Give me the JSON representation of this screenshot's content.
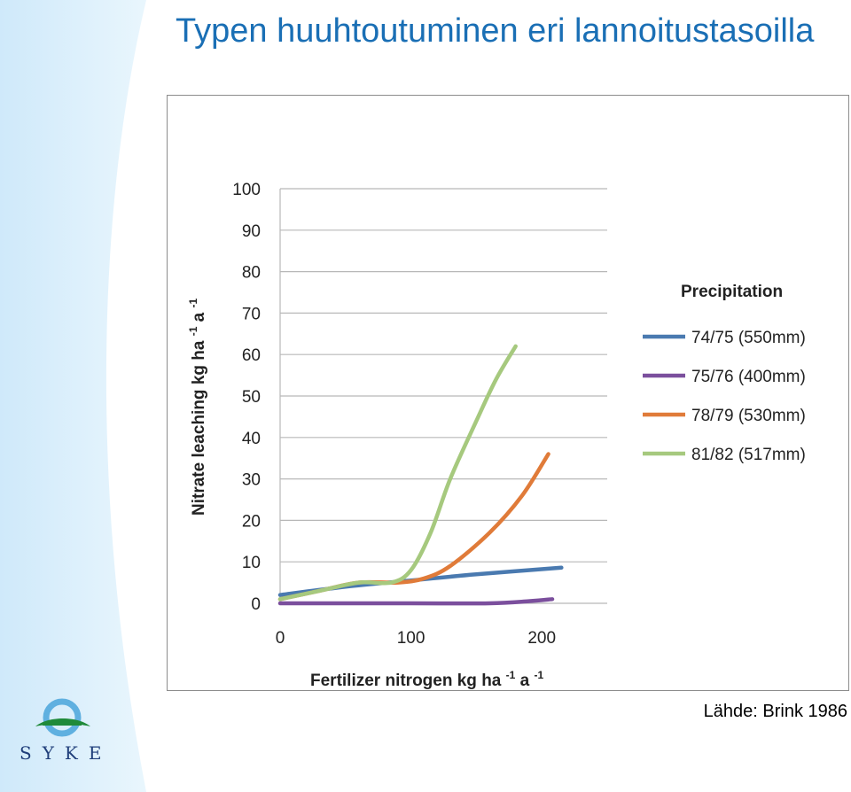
{
  "slide": {
    "title": "Typen huuhtoutuminen eri lannoitustasoilla",
    "source": "Lähde: Brink 1986",
    "logo_text": "SYKE"
  },
  "colors": {
    "title": "#1a6fb5",
    "swoosh": "#cde8f8",
    "grid": "#b8b8b8"
  },
  "chart_data": {
    "type": "line",
    "xlabel_main": "Fertilizer nitrogen kg ha",
    "xlabel_sup1": "-1",
    "xlabel_mid": " a",
    "xlabel_sup2": "-1",
    "ylabel_main": "Nitrate leaching kg ha",
    "ylabel_sup1": "-1",
    "ylabel_mid": "a",
    "ylabel_sup2": "-1",
    "xlim": [
      0,
      250
    ],
    "ylim": [
      0,
      100
    ],
    "x_ticks": [
      0,
      100,
      200
    ],
    "y_ticks": [
      0,
      10,
      20,
      30,
      40,
      50,
      60,
      70,
      80,
      90,
      100
    ],
    "grid": true,
    "legend_title": "Precipitation",
    "legend_position": "right",
    "series": [
      {
        "name": "74/75 (550mm)",
        "color": "#4a7ab0",
        "points": [
          [
            0,
            2
          ],
          [
            50,
            4
          ],
          [
            100,
            5.5
          ],
          [
            150,
            7
          ],
          [
            215,
            8.6
          ]
        ]
      },
      {
        "name": "75/76 (400mm)",
        "color": "#7b4f9d",
        "points": [
          [
            0,
            0
          ],
          [
            100,
            0
          ],
          [
            160,
            0
          ],
          [
            190,
            0.5
          ],
          [
            208,
            1
          ]
        ]
      },
      {
        "name": "78/79 (530mm)",
        "color": "#e07b39",
        "points": [
          [
            0,
            1
          ],
          [
            30,
            3
          ],
          [
            60,
            5
          ],
          [
            90,
            5
          ],
          [
            110,
            6
          ],
          [
            130,
            9
          ],
          [
            160,
            17
          ],
          [
            185,
            26
          ],
          [
            205,
            36
          ]
        ]
      },
      {
        "name": "81/82 (517mm)",
        "color": "#a6c97e",
        "points": [
          [
            0,
            1
          ],
          [
            30,
            3
          ],
          [
            60,
            5
          ],
          [
            85,
            5
          ],
          [
            100,
            8
          ],
          [
            115,
            17
          ],
          [
            130,
            30
          ],
          [
            150,
            44
          ],
          [
            165,
            54
          ],
          [
            180,
            62
          ]
        ]
      }
    ]
  }
}
